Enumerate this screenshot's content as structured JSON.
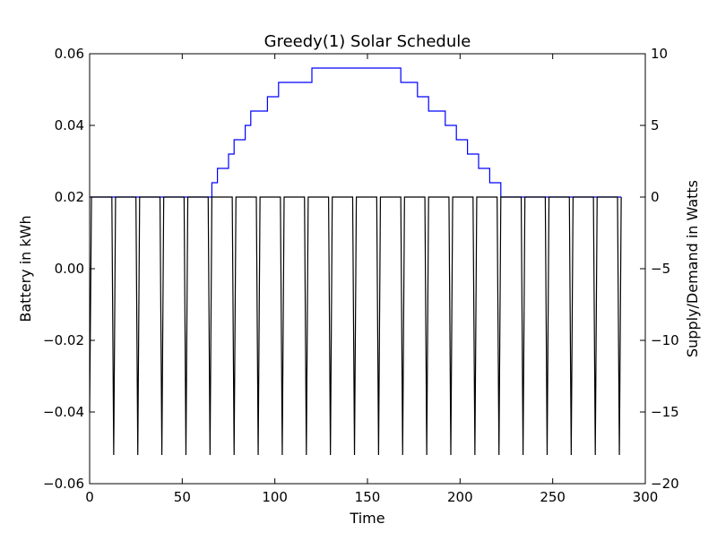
{
  "chart_data": {
    "type": "line",
    "title": "Greedy(1) Solar Schedule",
    "xlabel": "Time",
    "ylabel_left": "Battery in kWh",
    "ylabel_right": "Supply/Demand in Watts",
    "xlim": [
      0,
      300
    ],
    "ylim_left": [
      -0.06,
      0.06
    ],
    "ylim_right": [
      -20,
      10
    ],
    "x_ticks": [
      0,
      50,
      100,
      150,
      200,
      250,
      300
    ],
    "x_tick_labels": [
      "0",
      "50",
      "100",
      "150",
      "200",
      "250",
      "300"
    ],
    "y_left_ticks": [
      -0.06,
      -0.04,
      -0.02,
      0.0,
      0.02,
      0.04,
      0.06
    ],
    "y_left_tick_labels": [
      "−0.06",
      "−0.04",
      "−0.02",
      "0.00",
      "0.02",
      "0.04",
      "0.06"
    ],
    "y_right_ticks": [
      -20,
      -15,
      -10,
      -5,
      0,
      5,
      10
    ],
    "y_right_tick_labels": [
      "−20",
      "−15",
      "−10",
      "−5",
      "0",
      "5",
      "10"
    ],
    "grid": false,
    "legend": "none",
    "series": [
      {
        "axis": "left",
        "color": "#0000ff",
        "x": [
          0,
          66,
          66,
          69,
          69,
          72,
          72,
          75,
          75,
          78,
          78,
          81,
          81,
          84,
          84,
          87,
          87,
          90,
          90,
          93,
          93,
          96,
          96,
          99,
          99,
          102,
          102,
          105,
          105,
          108,
          108,
          111,
          111,
          114,
          114,
          117,
          117,
          120,
          120,
          168,
          168,
          171,
          171,
          174,
          174,
          177,
          177,
          180,
          180,
          183,
          183,
          186,
          186,
          189,
          189,
          192,
          192,
          195,
          195,
          198,
          198,
          201,
          201,
          204,
          204,
          207,
          207,
          210,
          210,
          213,
          213,
          216,
          216,
          219,
          219,
          222,
          222,
          287
        ],
        "y": [
          0.02,
          0.02,
          0.024,
          0.024,
          0.028,
          0.028,
          0.028,
          0.028,
          0.032,
          0.032,
          0.036,
          0.036,
          0.036,
          0.036,
          0.04,
          0.04,
          0.044,
          0.044,
          0.044,
          0.044,
          0.044,
          0.044,
          0.048,
          0.048,
          0.048,
          0.048,
          0.052,
          0.052,
          0.052,
          0.052,
          0.052,
          0.052,
          0.052,
          0.052,
          0.052,
          0.052,
          0.052,
          0.052,
          0.056,
          0.056,
          0.052,
          0.052,
          0.052,
          0.052,
          0.052,
          0.052,
          0.048,
          0.048,
          0.048,
          0.048,
          0.044,
          0.044,
          0.044,
          0.044,
          0.044,
          0.044,
          0.04,
          0.04,
          0.04,
          0.04,
          0.036,
          0.036,
          0.036,
          0.036,
          0.032,
          0.032,
          0.032,
          0.032,
          0.028,
          0.028,
          0.028,
          0.028,
          0.024,
          0.024,
          0.024,
          0.024,
          0.02,
          0.02
        ]
      },
      {
        "axis": "right",
        "color": "#000000",
        "x": [
          0,
          1,
          12,
          13,
          14,
          25,
          26,
          27,
          38,
          39,
          40,
          51,
          52,
          53,
          64,
          65,
          66,
          77,
          78,
          79,
          90,
          91,
          92,
          103,
          104,
          105,
          116,
          117,
          118,
          129,
          130,
          131,
          142,
          143,
          144,
          155,
          156,
          157,
          168,
          169,
          170,
          181,
          182,
          183,
          194,
          195,
          196,
          207,
          208,
          209,
          220,
          221,
          222,
          233,
          234,
          235,
          246,
          247,
          248,
          259,
          260,
          261,
          272,
          273,
          274,
          285,
          286,
          287
        ],
        "y": [
          -15,
          0,
          0,
          -18,
          0,
          0,
          -18,
          0,
          0,
          -18,
          0,
          0,
          -18,
          0,
          0,
          -18,
          0,
          0,
          -18,
          0,
          0,
          -18,
          0,
          0,
          -18,
          0,
          0,
          -18,
          0,
          0,
          -18,
          0,
          0,
          -18,
          0,
          0,
          -18,
          0,
          0,
          -18,
          0,
          0,
          -18,
          0,
          0,
          -18,
          0,
          0,
          -18,
          0,
          0,
          -18,
          0,
          0,
          -18,
          0,
          0,
          -18,
          0,
          0,
          -18,
          0,
          0,
          -18,
          0,
          0,
          -18,
          0
        ]
      }
    ]
  }
}
